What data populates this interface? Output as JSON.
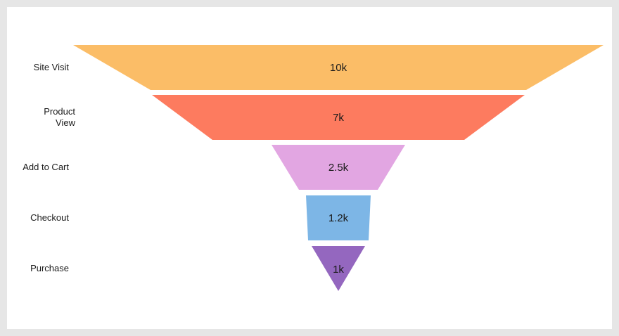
{
  "chart_data": {
    "type": "funnel",
    "title": "",
    "stages": [
      {
        "label": "Site Visit",
        "value": 10000,
        "display": "10k",
        "color": "#fbbd67"
      },
      {
        "label": "Product View",
        "value": 7000,
        "display": "7k",
        "color": "#fd7b5f"
      },
      {
        "label": "Add to Cart",
        "value": 2500,
        "display": "2.5k",
        "color": "#e2a6e2"
      },
      {
        "label": "Checkout",
        "value": 1200,
        "display": "1.2k",
        "color": "#7db6e6"
      },
      {
        "label": "Purchase",
        "value": 1000,
        "display": "1k",
        "color": "#9467bf"
      }
    ]
  }
}
